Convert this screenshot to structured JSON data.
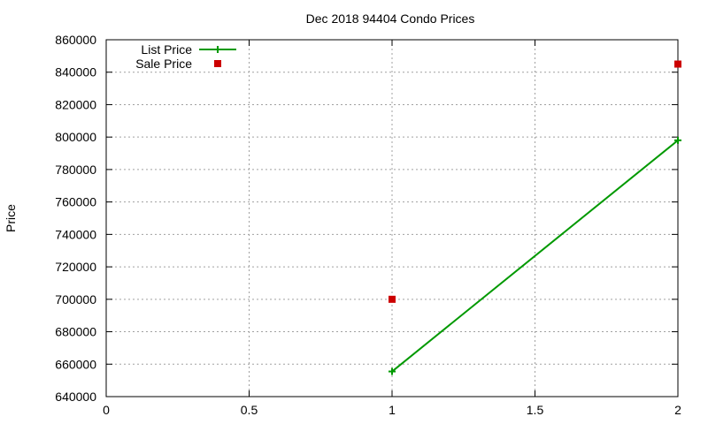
{
  "chart_data": {
    "type": "line",
    "title": "Dec 2018 94404 Condo Prices",
    "xlabel": "",
    "ylabel": "Price",
    "xlim": [
      0,
      2
    ],
    "ylim": [
      640000,
      860000
    ],
    "xticks": [
      0,
      0.5,
      1,
      1.5,
      2
    ],
    "xtick_labels": [
      "0",
      "0.5",
      "1",
      "1.5",
      "2"
    ],
    "yticks": [
      640000,
      660000,
      680000,
      700000,
      720000,
      740000,
      760000,
      780000,
      800000,
      820000,
      840000,
      860000
    ],
    "ytick_labels": [
      "640000",
      "660000",
      "680000",
      "700000",
      "720000",
      "740000",
      "760000",
      "780000",
      "800000",
      "820000",
      "840000",
      "860000"
    ],
    "grid": true,
    "legend_position": "top-left",
    "series": [
      {
        "name": "List Price",
        "style": "linespoints",
        "marker": "plus",
        "color": "#009900",
        "x": [
          1,
          2
        ],
        "y": [
          655500,
          798000
        ]
      },
      {
        "name": "Sale Price",
        "style": "points",
        "marker": "square",
        "color": "#cc0000",
        "x": [
          1,
          2
        ],
        "y": [
          700000,
          845000
        ]
      }
    ]
  }
}
